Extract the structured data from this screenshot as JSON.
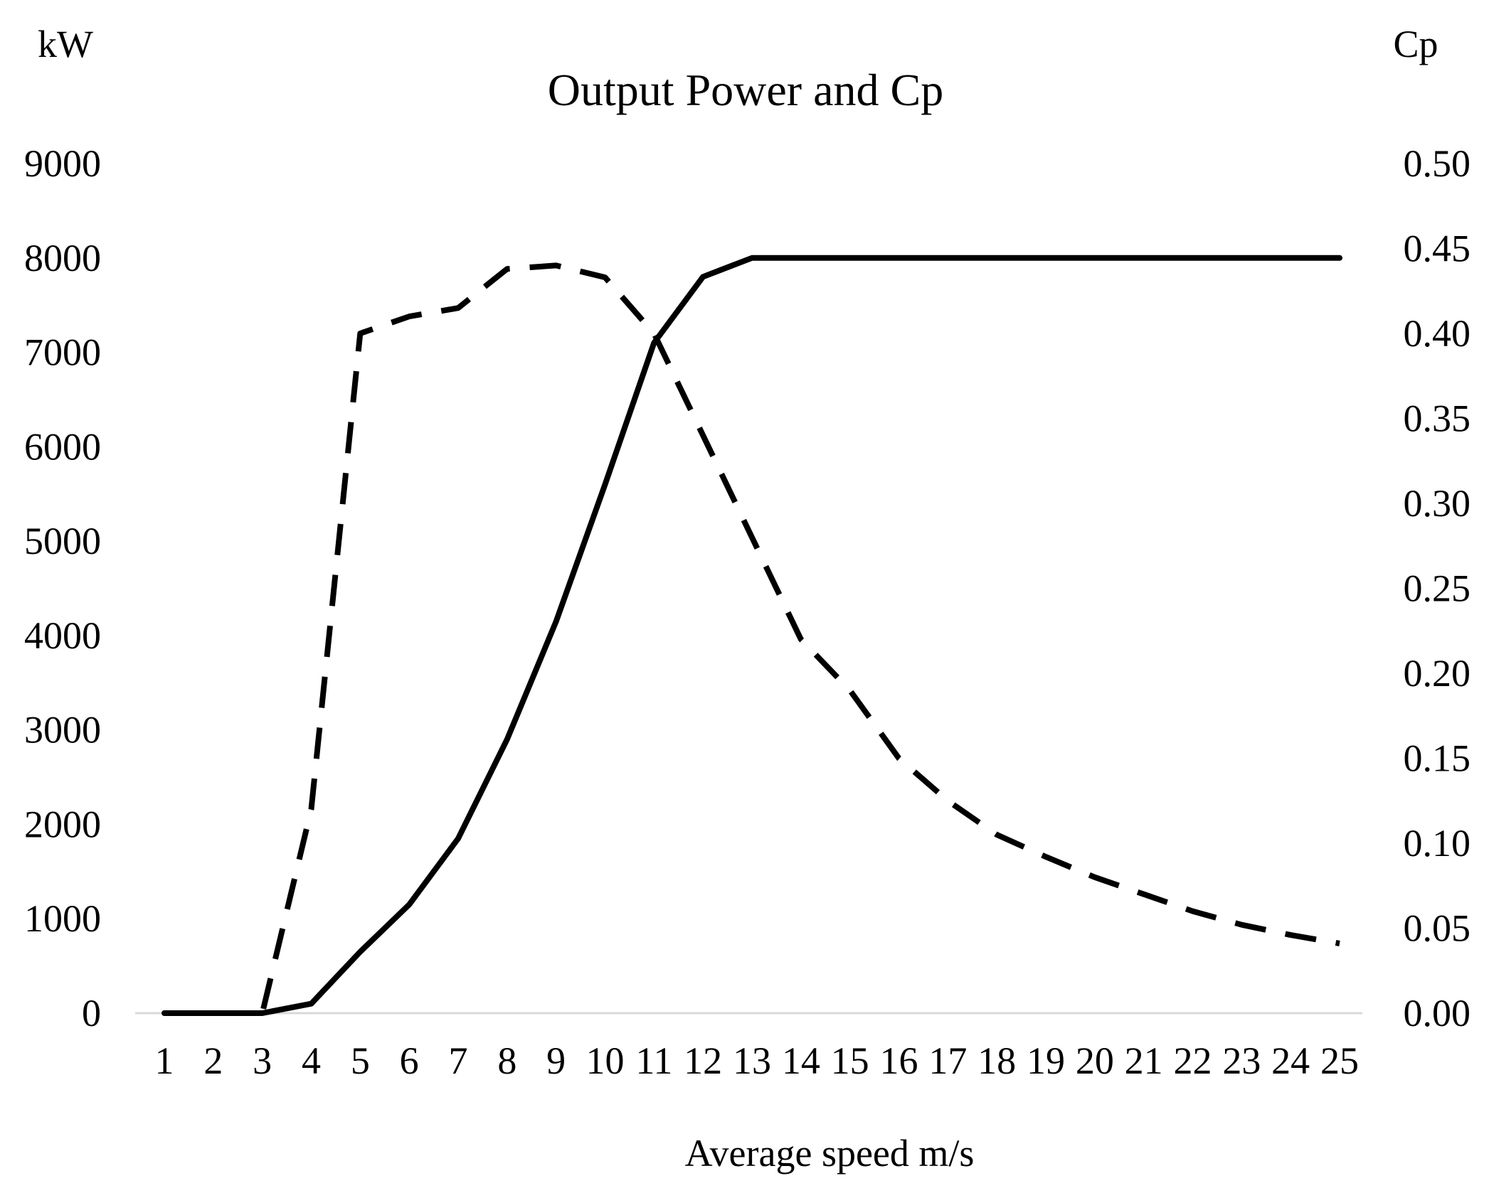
{
  "chart_data": {
    "type": "line",
    "title": "Output Power and Cp",
    "xlabel": "Average speed m/s",
    "ylabel_left": "kW",
    "ylabel_right": "Cp",
    "categories": [
      1,
      2,
      3,
      4,
      5,
      6,
      7,
      8,
      9,
      10,
      11,
      12,
      13,
      14,
      15,
      16,
      17,
      18,
      19,
      20,
      21,
      22,
      23,
      24,
      25
    ],
    "ylim_left": [
      0,
      9000
    ],
    "yticks_left": [
      0,
      1000,
      2000,
      3000,
      4000,
      5000,
      6000,
      7000,
      8000,
      9000
    ],
    "ylim_right": [
      0,
      0.5
    ],
    "yticks_right": [
      "0.00",
      "0.05",
      "0.10",
      "0.15",
      "0.20",
      "0.25",
      "0.30",
      "0.35",
      "0.40",
      "0.45",
      "0.50"
    ],
    "grid": false,
    "legend": "none",
    "series": [
      {
        "axis": "left",
        "style": "solid",
        "color": "#000000",
        "values": [
          0,
          0,
          0,
          100,
          650,
          1150,
          1850,
          2900,
          4150,
          5600,
          7100,
          7800,
          8000,
          8000,
          8000,
          8000,
          8000,
          8000,
          8000,
          8000,
          8000,
          8000,
          8000,
          8000,
          8000
        ]
      },
      {
        "axis": "right",
        "style": "dashed",
        "color": "#000000",
        "values": [
          0,
          0,
          0,
          0.12,
          0.4,
          0.41,
          0.415,
          0.438,
          0.44,
          0.433,
          0.4,
          0.34,
          0.28,
          0.22,
          0.19,
          0.15,
          0.125,
          0.105,
          0.092,
          0.08,
          0.07,
          0.06,
          0.052,
          0.046,
          0.041
        ]
      }
    ]
  }
}
